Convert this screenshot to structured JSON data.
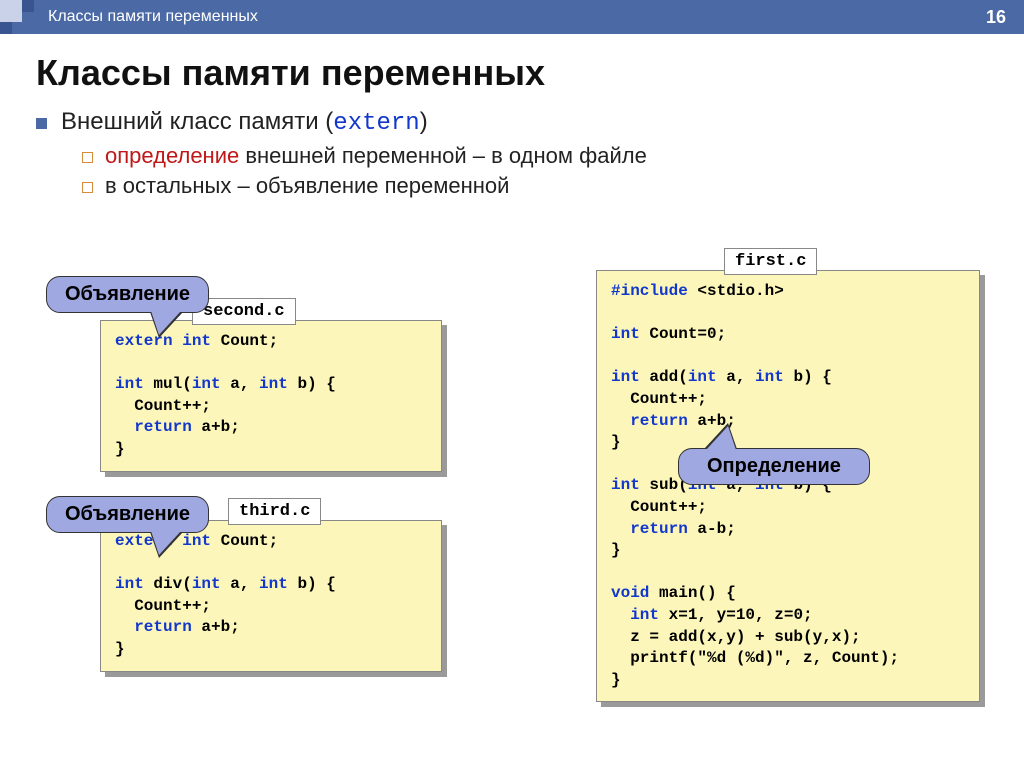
{
  "page": {
    "number": "16",
    "breadcrumb": "Классы памяти переменных"
  },
  "heading": "Классы памяти переменных",
  "bullet": {
    "prefix": "Внешний класс памяти (",
    "keyword": "extern",
    "suffix": ")"
  },
  "sub1": {
    "red": "определение",
    "rest": " внешней переменной – в одном файле"
  },
  "sub2": "в остальных – объявление переменной",
  "files": {
    "second": "second.c",
    "third": "third.c",
    "first": "first.c"
  },
  "callouts": {
    "decl1": "Объявление",
    "decl2": "Объявление",
    "def": "Определение"
  },
  "colors": {
    "topbar": "#4a69a5",
    "panel_bg": "#fcf6ba",
    "callout_bg": "#9fa8e0",
    "keyword": "#1137cc",
    "red": "#c01818",
    "shadow": "#9a9a9a"
  },
  "code": {
    "second": [
      {
        "t": "extern int",
        "k": true
      },
      {
        "t": " Count;",
        "k": false
      },
      {
        "br": 1
      },
      {
        "br": 1
      },
      {
        "t": "int",
        "k": true
      },
      {
        "t": " mul(",
        "k": false
      },
      {
        "t": "int",
        "k": true
      },
      {
        "t": " a, ",
        "k": false
      },
      {
        "t": "int",
        "k": true
      },
      {
        "t": " b) {",
        "k": false
      },
      {
        "br": 1
      },
      {
        "t": "  Count++;",
        "k": false
      },
      {
        "br": 1
      },
      {
        "t": "  ",
        "k": false
      },
      {
        "t": "return",
        "k": true
      },
      {
        "t": " a+b;",
        "k": false
      },
      {
        "br": 1
      },
      {
        "t": "}",
        "k": false
      }
    ],
    "third": [
      {
        "t": "extern int",
        "k": true
      },
      {
        "t": " Count;",
        "k": false
      },
      {
        "br": 1
      },
      {
        "br": 1
      },
      {
        "t": "int",
        "k": true
      },
      {
        "t": " div(",
        "k": false
      },
      {
        "t": "int",
        "k": true
      },
      {
        "t": " a, ",
        "k": false
      },
      {
        "t": "int",
        "k": true
      },
      {
        "t": " b) {",
        "k": false
      },
      {
        "br": 1
      },
      {
        "t": "  Count++;",
        "k": false
      },
      {
        "br": 1
      },
      {
        "t": "  ",
        "k": false
      },
      {
        "t": "return",
        "k": true
      },
      {
        "t": " a+b;",
        "k": false
      },
      {
        "br": 1
      },
      {
        "t": "}",
        "k": false
      }
    ],
    "first": [
      {
        "t": "#include",
        "k": true
      },
      {
        "t": " <stdio.h>",
        "k": false
      },
      {
        "br": 1
      },
      {
        "br": 1
      },
      {
        "t": "int",
        "k": true
      },
      {
        "t": " Count=0;",
        "k": false
      },
      {
        "br": 1
      },
      {
        "br": 1
      },
      {
        "t": "int",
        "k": true
      },
      {
        "t": " add(",
        "k": false
      },
      {
        "t": "int",
        "k": true
      },
      {
        "t": " a, ",
        "k": false
      },
      {
        "t": "int",
        "k": true
      },
      {
        "t": " b) {",
        "k": false
      },
      {
        "br": 1
      },
      {
        "t": "  Count++;",
        "k": false
      },
      {
        "br": 1
      },
      {
        "t": "  ",
        "k": false
      },
      {
        "t": "return",
        "k": true
      },
      {
        "t": " a+b;",
        "k": false
      },
      {
        "br": 1
      },
      {
        "t": "}",
        "k": false
      },
      {
        "br": 1
      },
      {
        "br": 1
      },
      {
        "t": "int",
        "k": true
      },
      {
        "t": " sub(",
        "k": false
      },
      {
        "t": "int",
        "k": true
      },
      {
        "t": " a, ",
        "k": false
      },
      {
        "t": "int",
        "k": true
      },
      {
        "t": " b) {",
        "k": false
      },
      {
        "br": 1
      },
      {
        "t": "  Count++;",
        "k": false
      },
      {
        "br": 1
      },
      {
        "t": "  ",
        "k": false
      },
      {
        "t": "return",
        "k": true
      },
      {
        "t": " a-b;",
        "k": false
      },
      {
        "br": 1
      },
      {
        "t": "}",
        "k": false
      },
      {
        "br": 1
      },
      {
        "br": 1
      },
      {
        "t": "void",
        "k": true
      },
      {
        "t": " main() {",
        "k": false
      },
      {
        "br": 1
      },
      {
        "t": "  ",
        "k": false
      },
      {
        "t": "int",
        "k": true
      },
      {
        "t": " x=1, y=10, z=0;",
        "k": false
      },
      {
        "br": 1
      },
      {
        "t": "  z = add(x,y) + sub(y,x);",
        "k": false
      },
      {
        "br": 1
      },
      {
        "t": "  printf(\"%d (%d)\", z, Count);",
        "k": false
      },
      {
        "br": 1
      },
      {
        "t": "}",
        "k": false
      }
    ]
  }
}
